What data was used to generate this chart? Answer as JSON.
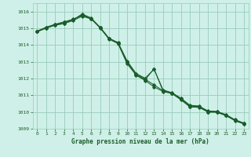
{
  "background_color": "#cff0e8",
  "grid_color": "#99ccbb",
  "line_color": "#1a5c2a",
  "xlabel": "Graphe pression niveau de la mer (hPa)",
  "xlabel_color": "#1a5c2a",
  "ylim": [
    1009.0,
    1016.5
  ],
  "xlim": [
    -0.5,
    23.5
  ],
  "yticks": [
    1009,
    1010,
    1011,
    1012,
    1013,
    1014,
    1015,
    1016
  ],
  "xticks": [
    0,
    1,
    2,
    3,
    4,
    5,
    6,
    7,
    8,
    9,
    10,
    11,
    12,
    13,
    14,
    15,
    16,
    17,
    18,
    19,
    20,
    21,
    22,
    23
  ],
  "series": [
    [
      1014.8,
      1015.0,
      1015.2,
      1015.3,
      1015.5,
      1015.85,
      1015.62,
      1015.05,
      1014.38,
      1014.12,
      1013.0,
      1012.18,
      1011.92,
      1012.58,
      1011.25,
      1011.12,
      1010.8,
      1010.3,
      1010.3,
      1010.0,
      1010.0,
      1009.8,
      1009.5,
      1009.3
    ],
    [
      1014.82,
      1015.02,
      1015.18,
      1015.28,
      1015.46,
      1015.72,
      1015.56,
      1015.02,
      1014.35,
      1014.08,
      1012.88,
      1012.22,
      1011.88,
      1011.5,
      1011.22,
      1011.1,
      1010.72,
      1010.3,
      1010.28,
      1010.0,
      1009.98,
      1009.78,
      1009.48,
      1009.28
    ],
    [
      1014.79,
      1015.04,
      1015.22,
      1015.36,
      1015.52,
      1015.8,
      1015.58,
      1015.06,
      1014.4,
      1014.15,
      1013.05,
      1012.3,
      1012.02,
      1012.55,
      1011.32,
      1011.15,
      1010.82,
      1010.4,
      1010.36,
      1010.06,
      1010.04,
      1009.84,
      1009.54,
      1009.34
    ],
    [
      1014.83,
      1015.06,
      1015.24,
      1015.38,
      1015.54,
      1015.76,
      1015.58,
      1015.03,
      1014.37,
      1014.11,
      1012.97,
      1012.26,
      1011.96,
      1011.62,
      1011.27,
      1011.13,
      1010.76,
      1010.36,
      1010.32,
      1010.03,
      1010.01,
      1009.81,
      1009.51,
      1009.31
    ]
  ]
}
